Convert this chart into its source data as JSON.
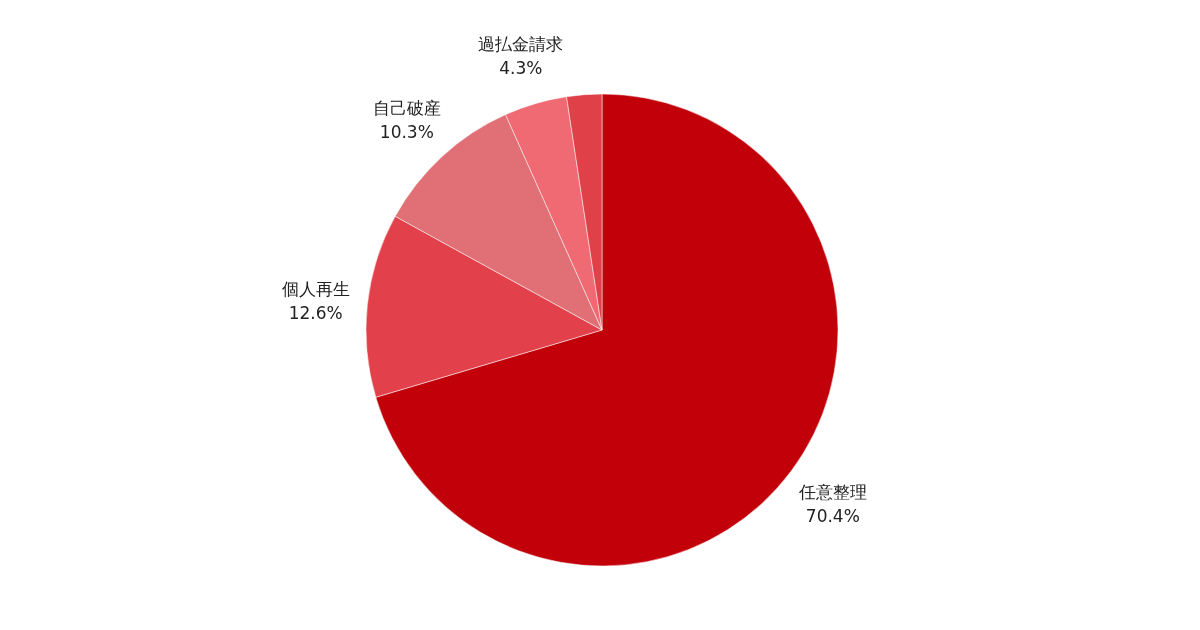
{
  "chart_data": {
    "type": "pie",
    "categories": [
      "任意整理",
      "個人再生",
      "自己破産",
      "過払金請求",
      null
    ],
    "values": [
      70.4,
      12.6,
      10.3,
      4.3,
      2.4
    ],
    "colors": [
      "#c1000a",
      "#e2404a",
      "#e07075",
      "#ef6a72",
      "#e04048"
    ],
    "value_labels": [
      "70.4%",
      "12.6%",
      "10.3%",
      "4.3%",
      null
    ],
    "legend": false
  }
}
